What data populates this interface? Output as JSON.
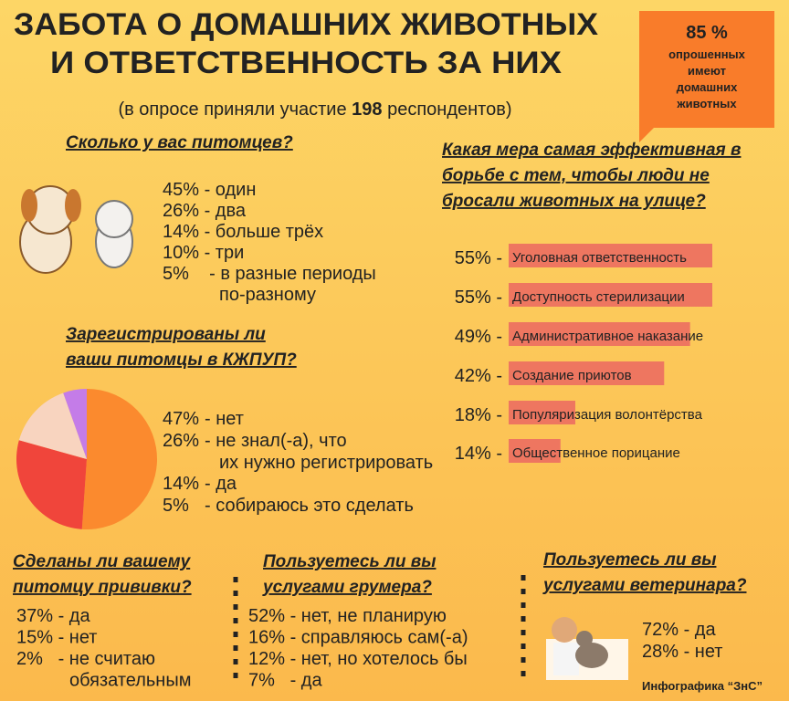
{
  "header": {
    "title": [
      "ЗАБОТА О ДОМАШНИХ ЖИВОТНЫХ",
      "И ОТВЕТСТВЕННОСТЬ ЗА НИХ"
    ],
    "subtitle": [
      "(в опросе приняли участие ",
      "198",
      " респондентов)"
    ]
  },
  "callout": {
    "value": "85 %",
    "lines": [
      "опрошенных",
      "имеют",
      "домашних",
      "животных"
    ]
  },
  "sections": [
    {
      "title": [
        "Сколько у вас питомцев?"
      ],
      "items": [
        [
          "45% - один"
        ],
        [
          "26% - два"
        ],
        [
          "14% - больше трёх"
        ],
        [
          "10% - три"
        ],
        [
          "5%    - в разные периоды",
          "по-разному"
        ]
      ]
    },
    {
      "title": [
        "Сделаны ли вашему",
        "питомцу прививки?"
      ],
      "items": [
        [
          "37% - да"
        ],
        [
          "15% - нет"
        ],
        [
          "2%   - не считаю",
          "обязательным"
        ]
      ]
    },
    {
      "title": [
        "Пользуетесь ли вы",
        "услугами грумера?"
      ],
      "items": [
        [
          "52% - нет, не планирую"
        ],
        [
          "16% - справляюсь сам(-а)"
        ],
        [
          "12% - нет, но хотелось бы"
        ],
        [
          "7%   - да"
        ]
      ]
    },
    {
      "title": [
        "Пользуетесь ли вы",
        "услугами ветеринара?"
      ],
      "items": [
        [
          "72% - да"
        ],
        [
          "28% - нет"
        ]
      ]
    }
  ],
  "chart_data": [
    {
      "type": "pie",
      "title": [
        "Зарегистрированы ли",
        "ваши питомцы в КЖПУП?"
      ],
      "values": [
        47,
        26,
        14,
        5
      ],
      "value_labels": [
        "47%",
        "26%",
        "14%",
        "5%"
      ],
      "categories": [
        "- нет",
        "- не знал(-а), что их нужно регистрировать",
        "- да",
        "- собираюсь это сделать"
      ],
      "colors": [
        "#fb8a2e",
        "#f0453b",
        "#f8d4bf",
        "#c47ce8"
      ]
    },
    {
      "type": "bar",
      "title": [
        "Какая мера самая эффективная в",
        "борьбе с тем, чтобы люди не",
        "бросали животных на улице?"
      ],
      "categories": [
        "Уголовная ответственность",
        "Доступность стерилизации",
        "Административное наказание",
        "Создание приютов",
        "Популяризация волонтёрства",
        "Общественное порицание"
      ],
      "values": [
        55,
        55,
        49,
        42,
        18,
        14
      ],
      "value_labels": [
        "55% -",
        "55% -",
        "49% -",
        "42% -",
        "18% -",
        "14% -"
      ],
      "color": "#ee7660"
    }
  ],
  "footer": "Инфографика “ЗнС”"
}
